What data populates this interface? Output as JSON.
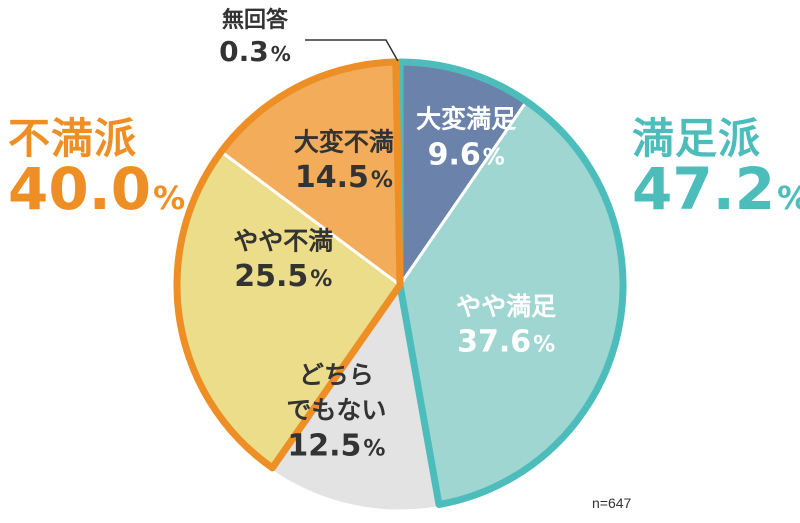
{
  "chart_data": {
    "type": "pie",
    "start": "12 o'clock",
    "direction": "clockwise",
    "slices": [
      {
        "label": "大変満足",
        "value": 9.6,
        "value_text": "9.6",
        "color": "#6b83ab",
        "text_color": "#ffffff"
      },
      {
        "label": "やや満足",
        "value": 37.6,
        "value_text": "37.6",
        "color": "#9fd6d2",
        "text_color": "#ffffff"
      },
      {
        "label": "どちら\nでもない",
        "value": 12.5,
        "value_text": "12.5",
        "color": "#e3e3e3",
        "text_color": "#333333"
      },
      {
        "label": "やや不満",
        "value": 25.5,
        "value_text": "25.5",
        "color": "#ebdd8a",
        "text_color": "#333333"
      },
      {
        "label": "大変不満",
        "value": 14.5,
        "value_text": "14.5",
        "color": "#f2ac5a",
        "text_color": "#333333"
      },
      {
        "label": "無回答",
        "value": 0.3,
        "value_text": "0.3",
        "color": "#ffffff",
        "text_color": "#333333"
      }
    ],
    "groups": [
      {
        "label": "満足派",
        "value": 47.2,
        "value_text": "47.2",
        "color": "#4dbdbb",
        "slices": [
          0,
          1
        ]
      },
      {
        "label": "不満派",
        "value": 40.0,
        "value_text": "40.0",
        "color": "#ee8f26",
        "slices": [
          3,
          4
        ]
      }
    ],
    "percent_sign": "%",
    "note": "n=647"
  }
}
